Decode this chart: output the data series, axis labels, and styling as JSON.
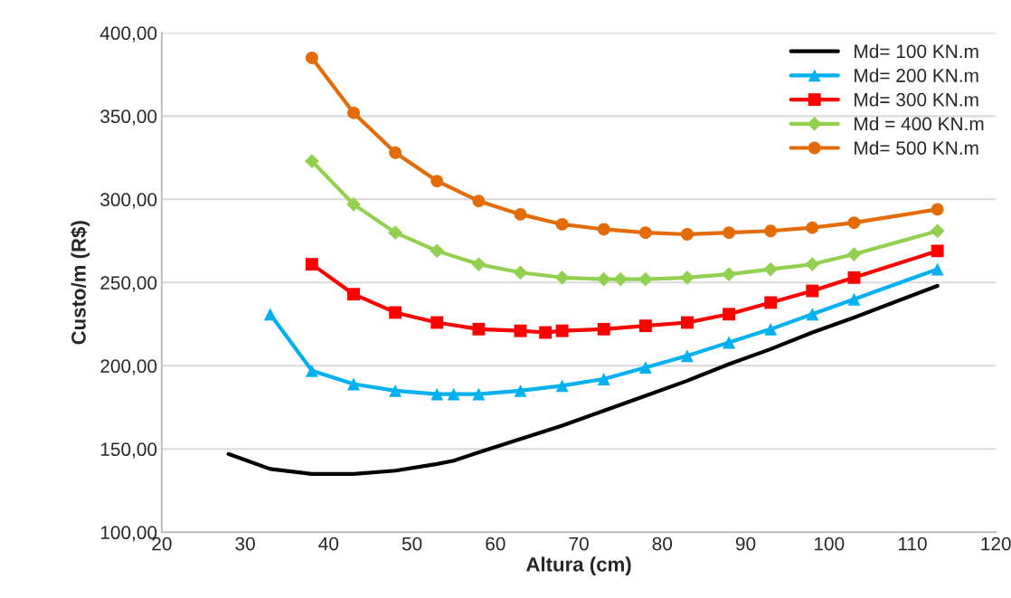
{
  "chart_data": {
    "type": "line",
    "xlabel": "Altura (cm)",
    "ylabel": "Custo/m (R$)",
    "xlim": [
      20,
      120
    ],
    "xticks": [
      20,
      30,
      40,
      50,
      60,
      70,
      80,
      90,
      100,
      110,
      120
    ],
    "ylim": [
      100,
      400
    ],
    "yticks": [
      {
        "value": 100,
        "label": "100,00"
      },
      {
        "value": 150,
        "label": "150,00"
      },
      {
        "value": 200,
        "label": "200,00"
      },
      {
        "value": 250,
        "label": "250,00"
      },
      {
        "value": 300,
        "label": "300,00"
      },
      {
        "value": 350,
        "label": "350,00"
      },
      {
        "value": 400,
        "label": "400,00"
      }
    ],
    "grid": "y",
    "legend": "top right",
    "line_style": "solid",
    "series": [
      {
        "name": "Md= 100 KN.m",
        "color": "#000000",
        "marker": "none",
        "x": [
          28,
          33,
          38,
          43,
          48,
          53,
          55,
          58,
          63,
          68,
          73,
          78,
          83,
          88,
          93,
          98,
          103,
          113
        ],
        "values": [
          147,
          138,
          135,
          135,
          137,
          141,
          143,
          148,
          156,
          164,
          173,
          182,
          191,
          201,
          210,
          220,
          229,
          248
        ]
      },
      {
        "name": "Md= 200 KN.m",
        "color": "#00b0f0",
        "marker": "triangle",
        "x": [
          33,
          38,
          43,
          48,
          53,
          55,
          58,
          63,
          68,
          73,
          78,
          83,
          88,
          93,
          98,
          103,
          113
        ],
        "values": [
          231,
          197,
          189,
          185,
          183,
          183,
          183,
          185,
          188,
          192,
          199,
          206,
          214,
          222,
          231,
          240,
          258
        ]
      },
      {
        "name": "Md= 300 KN.m",
        "color": "#ff0000",
        "marker": "square",
        "x": [
          38,
          43,
          48,
          53,
          58,
          63,
          66,
          68,
          73,
          78,
          83,
          88,
          93,
          98,
          103,
          113
        ],
        "values": [
          261,
          243,
          232,
          226,
          222,
          221,
          220,
          221,
          222,
          224,
          226,
          231,
          238,
          245,
          253,
          269
        ]
      },
      {
        "name": "Md = 400 KN.m",
        "color": "#92d050",
        "marker": "diamond",
        "x": [
          38,
          43,
          48,
          53,
          58,
          63,
          68,
          73,
          75,
          78,
          83,
          88,
          93,
          98,
          103,
          113
        ],
        "values": [
          323,
          297,
          280,
          269,
          261,
          256,
          253,
          252,
          252,
          252,
          253,
          255,
          258,
          261,
          267,
          281
        ]
      },
      {
        "name": "Md= 500 KN.m",
        "color": "#e36c09",
        "marker": "circle",
        "x": [
          38,
          43,
          48,
          53,
          58,
          63,
          68,
          73,
          78,
          83,
          88,
          93,
          98,
          103,
          113
        ],
        "values": [
          385,
          352,
          328,
          311,
          299,
          291,
          285,
          282,
          280,
          279,
          280,
          281,
          283,
          286,
          294
        ]
      }
    ]
  }
}
